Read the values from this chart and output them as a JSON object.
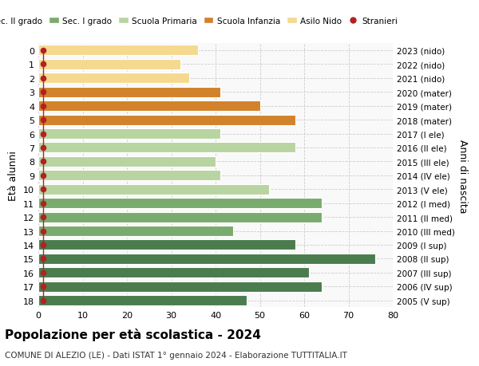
{
  "ages": [
    18,
    17,
    16,
    15,
    14,
    13,
    12,
    11,
    10,
    9,
    8,
    7,
    6,
    5,
    4,
    3,
    2,
    1,
    0
  ],
  "values": [
    47,
    64,
    61,
    76,
    58,
    44,
    64,
    64,
    52,
    41,
    40,
    58,
    41,
    58,
    50,
    41,
    34,
    32,
    36
  ],
  "right_labels": [
    "2005 (V sup)",
    "2006 (IV sup)",
    "2007 (III sup)",
    "2008 (II sup)",
    "2009 (I sup)",
    "2010 (III med)",
    "2011 (II med)",
    "2012 (I med)",
    "2013 (V ele)",
    "2014 (IV ele)",
    "2015 (III ele)",
    "2016 (II ele)",
    "2017 (I ele)",
    "2018 (mater)",
    "2019 (mater)",
    "2020 (mater)",
    "2021 (nido)",
    "2022 (nido)",
    "2023 (nido)"
  ],
  "colors": [
    "#4a7c4e",
    "#4a7c4e",
    "#4a7c4e",
    "#4a7c4e",
    "#4a7c4e",
    "#7aab6e",
    "#7aab6e",
    "#7aab6e",
    "#b8d4a0",
    "#b8d4a0",
    "#b8d4a0",
    "#b8d4a0",
    "#b8d4a0",
    "#d2822b",
    "#d2822b",
    "#d2822b",
    "#f5d98e",
    "#f5d98e",
    "#f5d98e"
  ],
  "legend_labels": [
    "Sec. II grado",
    "Sec. I grado",
    "Scuola Primaria",
    "Scuola Infanzia",
    "Asilo Nido",
    "Stranieri"
  ],
  "legend_colors": [
    "#4a7c4e",
    "#7aab6e",
    "#b8d4a0",
    "#d2822b",
    "#f5d98e",
    "#b22222"
  ],
  "stranieri_color": "#b22222",
  "title": "Popolazione per età scolastica - 2024",
  "subtitle": "COMUNE DI ALEZIO (LE) - Dati ISTAT 1° gennaio 2024 - Elaborazione TUTTITALIA.IT",
  "ylabel": "Età alunni",
  "right_ylabel": "Anni di nascita",
  "xlim": [
    0,
    80
  ],
  "xticks": [
    0,
    10,
    20,
    30,
    40,
    50,
    60,
    70,
    80
  ],
  "bg_color": "#f9f9f9",
  "bar_edge_color": "#ffffff",
  "grid_color": "#cccccc"
}
